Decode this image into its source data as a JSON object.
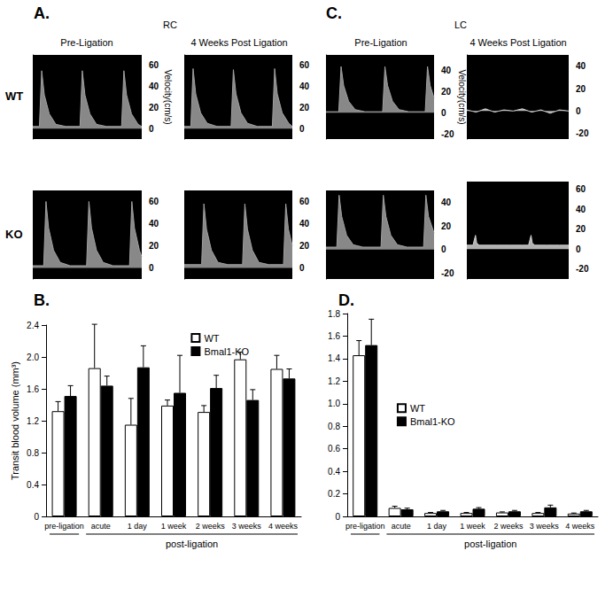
{
  "chart_data": [
    {
      "type": "line",
      "panel_label": "A.",
      "group_title": "RC",
      "column_title": "Pre-Ligation",
      "row_label": "WT",
      "ylabel": "Velocity(cm/s)",
      "x": [
        0,
        20,
        27,
        35,
        50,
        70,
        100,
        143,
        150,
        158,
        173,
        193,
        223,
        269,
        276,
        284,
        299,
        319,
        330
      ],
      "values": [
        2,
        2,
        55,
        32,
        14,
        4,
        2,
        2,
        55,
        32,
        14,
        4,
        2,
        2,
        55,
        32,
        14,
        4,
        2
      ],
      "xlim": [
        0,
        330
      ],
      "ylim": [
        -10,
        70
      ],
      "yticks": [
        0,
        20,
        40,
        60
      ],
      "color": "#a0a0a0",
      "tick_labels": "y",
      "grid": false
    },
    {
      "type": "line",
      "column_title": "4 Weeks Post Ligation",
      "x": [
        0,
        20,
        27,
        35,
        50,
        70,
        100,
        143,
        150,
        158,
        173,
        193,
        223,
        269,
        276,
        284,
        299,
        319,
        330
      ],
      "values": [
        2,
        2,
        57,
        33,
        15,
        5,
        2,
        2,
        56,
        33,
        15,
        5,
        2,
        2,
        57,
        33,
        15,
        5,
        2
      ],
      "xlim": [
        0,
        330
      ],
      "ylim": [
        -10,
        70
      ],
      "yticks": [
        0,
        20,
        40,
        60
      ],
      "color": "#a0a0a0",
      "tick_labels": "y",
      "grid": false
    },
    {
      "type": "line",
      "row_label": "KO",
      "x": [
        0,
        33,
        40,
        48,
        63,
        83,
        113,
        163,
        170,
        178,
        193,
        213,
        243,
        293,
        300,
        308,
        323,
        330
      ],
      "values": [
        2,
        2,
        60,
        36,
        16,
        5,
        2,
        2,
        60,
        36,
        16,
        5,
        2,
        2,
        60,
        36,
        16,
        10
      ],
      "xlim": [
        0,
        330
      ],
      "ylim": [
        -10,
        70
      ],
      "yticks": [
        0,
        20,
        40,
        60
      ],
      "color": "#a0a0a0",
      "tick_labels": "y",
      "grid": false
    },
    {
      "type": "line",
      "x": [
        0,
        53,
        60,
        68,
        83,
        103,
        133,
        178,
        185,
        193,
        208,
        228,
        258,
        303,
        310,
        318,
        330
      ],
      "values": [
        3,
        3,
        58,
        35,
        16,
        5,
        3,
        3,
        58,
        35,
        16,
        5,
        3,
        3,
        58,
        35,
        20
      ],
      "xlim": [
        0,
        330
      ],
      "ylim": [
        -10,
        70
      ],
      "yticks": [
        0,
        20,
        40,
        60
      ],
      "color": "#a0a0a0",
      "tick_labels": "y",
      "grid": false
    },
    {
      "type": "line",
      "panel_label": "C.",
      "group_title": "LC",
      "column_title": "Pre-Ligation",
      "ylabel": "Velocity(cm/s)",
      "x": [
        0,
        39,
        46,
        54,
        69,
        89,
        119,
        173,
        180,
        188,
        203,
        223,
        253,
        303,
        310,
        318,
        330
      ],
      "values": [
        1,
        1,
        44,
        26,
        11,
        3,
        1,
        1,
        44,
        26,
        11,
        3,
        1,
        1,
        44,
        26,
        14
      ],
      "xlim": [
        0,
        330
      ],
      "ylim": [
        -25,
        55
      ],
      "yticks": [
        -20,
        0,
        20,
        40
      ],
      "color": "#a0a0a0",
      "tick_labels": "y",
      "grid": false
    },
    {
      "type": "line",
      "column_title": "4 Weeks Post Ligation",
      "x": [
        0,
        30,
        60,
        90,
        120,
        150,
        180,
        210,
        240,
        270,
        300,
        330
      ],
      "values": [
        1,
        -1,
        2,
        -1,
        1,
        0,
        2,
        -1,
        1,
        -2,
        1,
        0
      ],
      "xlim": [
        0,
        330
      ],
      "ylim": [
        -25,
        50
      ],
      "yticks": [
        -20,
        0,
        20,
        40
      ],
      "color": "#d0d0d0",
      "tick_labels": "y",
      "grid": false
    },
    {
      "type": "line",
      "x": [
        0,
        33,
        40,
        48,
        63,
        83,
        113,
        168,
        175,
        183,
        198,
        218,
        248,
        298,
        305,
        313,
        330
      ],
      "values": [
        2,
        2,
        46,
        28,
        12,
        4,
        2,
        2,
        46,
        28,
        12,
        4,
        2,
        2,
        46,
        28,
        14
      ],
      "xlim": [
        0,
        330
      ],
      "ylim": [
        -25,
        50
      ],
      "yticks": [
        -20,
        0,
        20,
        40
      ],
      "color": "#a0a0a0",
      "tick_labels": "y",
      "grid": false
    },
    {
      "type": "line",
      "x": [
        0,
        20,
        28,
        32,
        40,
        60,
        100,
        140,
        180,
        200,
        208,
        212,
        220,
        260,
        300,
        330
      ],
      "values": [
        4,
        4,
        14,
        6,
        4,
        4,
        4,
        4,
        4,
        4,
        14,
        6,
        4,
        4,
        4,
        4
      ],
      "xlim": [
        0,
        330
      ],
      "ylim": [
        -30,
        68
      ],
      "yticks": [
        -20,
        0,
        20,
        40,
        60
      ],
      "color": "#d0d0d0",
      "tick_labels": "y",
      "grid": false
    },
    {
      "type": "bar",
      "panel_label": "B.",
      "ylabel": "Transit blood volume (mm³)",
      "categories": [
        "pre-ligation",
        "acute",
        "1 day",
        "1 week",
        "2 weeks",
        "3 weeks",
        "4 weeks"
      ],
      "x_group": {
        "label": "post-ligation",
        "categories": [
          "acute",
          "1 day",
          "1 week",
          "2 weeks",
          "3 weeks",
          "4 weeks"
        ]
      },
      "series": [
        {
          "name": "WT",
          "color": "#ffffff",
          "values": [
            1.32,
            1.86,
            1.15,
            1.39,
            1.31,
            1.97,
            1.85
          ],
          "errors": [
            0.12,
            0.55,
            0.33,
            0.07,
            0.08,
            0.09,
            0.17
          ]
        },
        {
          "name": "Bmal1-KO",
          "color": "#000000",
          "values": [
            1.51,
            1.64,
            1.87,
            1.55,
            1.61,
            1.46,
            1.73
          ],
          "errors": [
            0.13,
            0.12,
            0.27,
            0.47,
            0.16,
            0.13,
            0.12
          ]
        }
      ],
      "ylim": [
        0,
        2.4
      ],
      "yticks": [
        0,
        0.4,
        0.8,
        1.2,
        1.6,
        {
          "value": 2,
          "label": "2.0"
        },
        2.4
      ],
      "legend": "upper center",
      "grid": false
    },
    {
      "type": "bar",
      "panel_label": "D.",
      "categories": [
        "pre-ligation",
        "acute",
        "1 day",
        "1 week",
        "2 weeks",
        "3 weeks",
        "4 weeks"
      ],
      "x_group": {
        "label": "post-ligation",
        "categories": [
          "acute",
          "1 day",
          "1 week",
          "2 weeks",
          "3 weeks",
          "4 weeks"
        ]
      },
      "series": [
        {
          "name": "WT",
          "color": "#ffffff",
          "values": [
            1.43,
            0.075,
            0.03,
            0.03,
            0.035,
            0.03,
            0.025
          ],
          "errors": [
            0.13,
            0.015,
            0.005,
            0.005,
            0.005,
            0.005,
            0.005
          ]
        },
        {
          "name": "Bmal1-KO",
          "color": "#000000",
          "values": [
            1.52,
            0.063,
            0.045,
            0.068,
            0.045,
            0.08,
            0.045
          ],
          "errors": [
            0.23,
            0.01,
            0.008,
            0.01,
            0.008,
            0.02,
            0.008
          ]
        }
      ],
      "ylim": [
        0,
        1.8
      ],
      "yticks": [
        0,
        0.2,
        0.4,
        0.6,
        0.8,
        {
          "value": 1,
          "label": "1.0"
        },
        1.2,
        1.4,
        1.6,
        1.8
      ],
      "legend": "center",
      "grid": false
    }
  ]
}
